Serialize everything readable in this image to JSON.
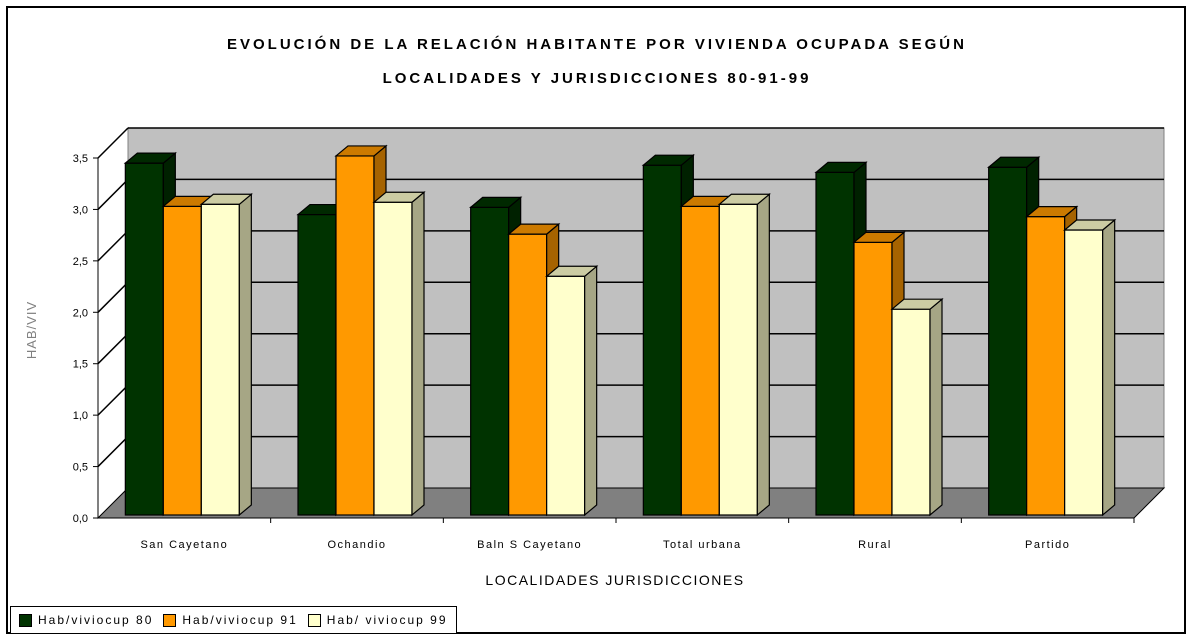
{
  "chart_data": {
    "type": "bar",
    "title": "EVOLUCIÓN DE LA RELACIÓN HABITANTE POR VIVIENDA OCUPADA SEGÚN",
    "subtitle": "LOCALIDADES Y JURISDICCIONES 80-91-99",
    "xlabel": "LOCALIDADES JURISDICCIONES",
    "ylabel": "HAB/VIV",
    "categories": [
      "San Cayetano",
      "Ochandio",
      "Baln S Cayetano",
      "Total urbana",
      "Rural",
      "Partido"
    ],
    "series": [
      {
        "name": "Hab/viviocup 80",
        "values": [
          3.45,
          2.95,
          3.02,
          3.43,
          3.36,
          3.41
        ],
        "color": "#003300"
      },
      {
        "name": "Hab/viviocup 91",
        "values": [
          3.03,
          3.52,
          2.76,
          3.03,
          2.68,
          2.93
        ],
        "color": "#ff9900"
      },
      {
        "name": "Hab/ viviocup 99",
        "values": [
          3.05,
          3.07,
          2.35,
          3.05,
          2.03,
          2.8
        ],
        "color": "#ffffcc"
      }
    ],
    "ylim": [
      0,
      3.5
    ],
    "yticks": [
      "0,0",
      "0,5",
      "1,0",
      "1,5",
      "2,0",
      "2,5",
      "3,0",
      "3,5"
    ],
    "grid": true,
    "legend_position": "bottom-left"
  }
}
